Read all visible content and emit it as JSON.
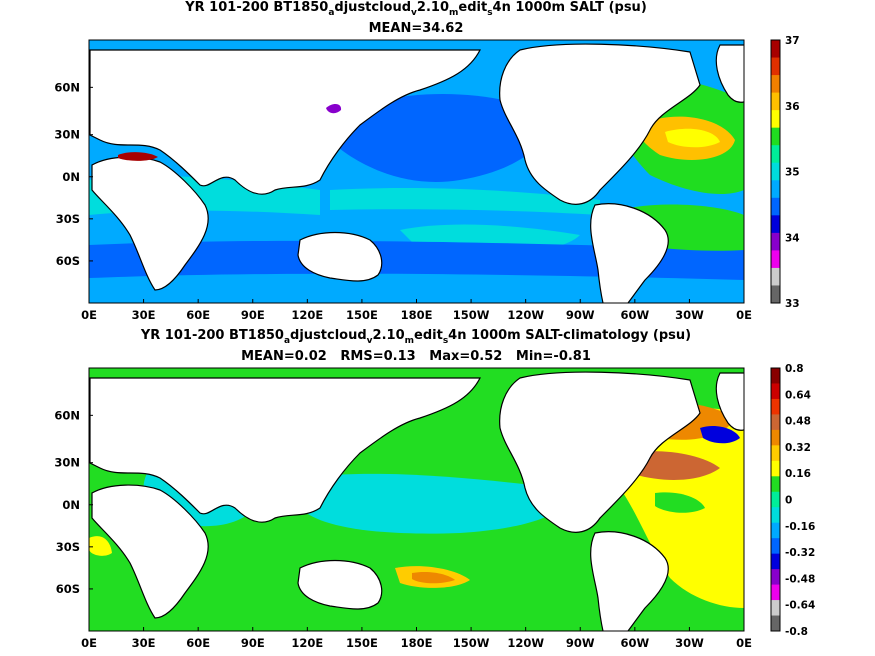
{
  "panels": [
    {
      "title_parts": [
        "YR 101-200 BT1850",
        "a",
        "djustcloud",
        "v",
        "2.10",
        "m",
        "edit",
        "s",
        "4n 1000m SALT (psu)"
      ],
      "subtitle": "MEAN=34.62",
      "lon_labels": [
        "0E",
        "30E",
        "60E",
        "90E",
        "120E",
        "150E",
        "180E",
        "150W",
        "120W",
        "90W",
        "60W",
        "30W",
        "0E"
      ],
      "lat_labels": [
        "60N",
        "30N",
        "0N",
        "30S",
        "60S"
      ],
      "colorbar": {
        "labels": [
          "37",
          "36",
          "35",
          "34",
          "33"
        ],
        "colors": [
          "#a80000",
          "#e03000",
          "#f08000",
          "#ffc000",
          "#ffff00",
          "#20dd20",
          "#00ee99",
          "#00dddd",
          "#00aaff",
          "#0066ff",
          "#0000dd",
          "#8800cc",
          "#ee00ee",
          "#cccccc",
          "#666666"
        ]
      }
    },
    {
      "title_parts": [
        "YR 101-200 BT1850",
        "a",
        "djustcloud",
        "v",
        "2.10",
        "m",
        "edit",
        "s",
        "4n 1000m SALT-climatology (psu)"
      ],
      "subtitle": "MEAN=0.02   RMS=0.13   Max=0.52   Min=-0.81",
      "lon_labels": [
        "0E",
        "30E",
        "60E",
        "90E",
        "120E",
        "150E",
        "180E",
        "150W",
        "120W",
        "90W",
        "60W",
        "30W",
        "0E"
      ],
      "lat_labels": [
        "60N",
        "30N",
        "0N",
        "30S",
        "60S"
      ],
      "colorbar": {
        "labels": [
          "0.8",
          "0.64",
          "0.48",
          "0.32",
          "0.16",
          "0",
          "-0.16",
          "-0.32",
          "-0.48",
          "-0.64",
          "-0.8"
        ],
        "colors": [
          "#880000",
          "#cc0000",
          "#ee3300",
          "#cc6633",
          "#ee8800",
          "#ffcc00",
          "#ffff00",
          "#22dd22",
          "#00ee99",
          "#00dddd",
          "#00aaff",
          "#0066ff",
          "#0000dd",
          "#8800cc",
          "#ee00ee",
          "#cccccc",
          "#666666"
        ]
      }
    }
  ],
  "fields": {
    "panel0": {
      "ocean_base": "#00aaff",
      "regions": [
        {
          "name": "north-pacific",
          "color": "#0066ff"
        },
        {
          "name": "atlantic-subtropical",
          "color": "#ffc000"
        },
        {
          "name": "atlantic-north",
          "color": "#20dd20"
        },
        {
          "name": "indian-equatorial",
          "color": "#00dddd"
        },
        {
          "name": "mediterranean",
          "color": "#a80000"
        },
        {
          "name": "japan-sea",
          "color": "#8800cc"
        },
        {
          "name": "southern-ocean",
          "color": "#0066ff"
        }
      ]
    },
    "panel1": {
      "ocean_base": "#22dd22",
      "regions": [
        {
          "name": "atlantic-anomaly",
          "color": "#ffff00"
        },
        {
          "name": "atlantic-core",
          "color": "#ee8800"
        },
        {
          "name": "labrador-low",
          "color": "#0000dd"
        },
        {
          "name": "indian-low",
          "color": "#0066ff"
        },
        {
          "name": "tropical-pacific",
          "color": "#00dddd"
        },
        {
          "name": "southern-high",
          "color": "#ffcc00"
        }
      ]
    }
  }
}
